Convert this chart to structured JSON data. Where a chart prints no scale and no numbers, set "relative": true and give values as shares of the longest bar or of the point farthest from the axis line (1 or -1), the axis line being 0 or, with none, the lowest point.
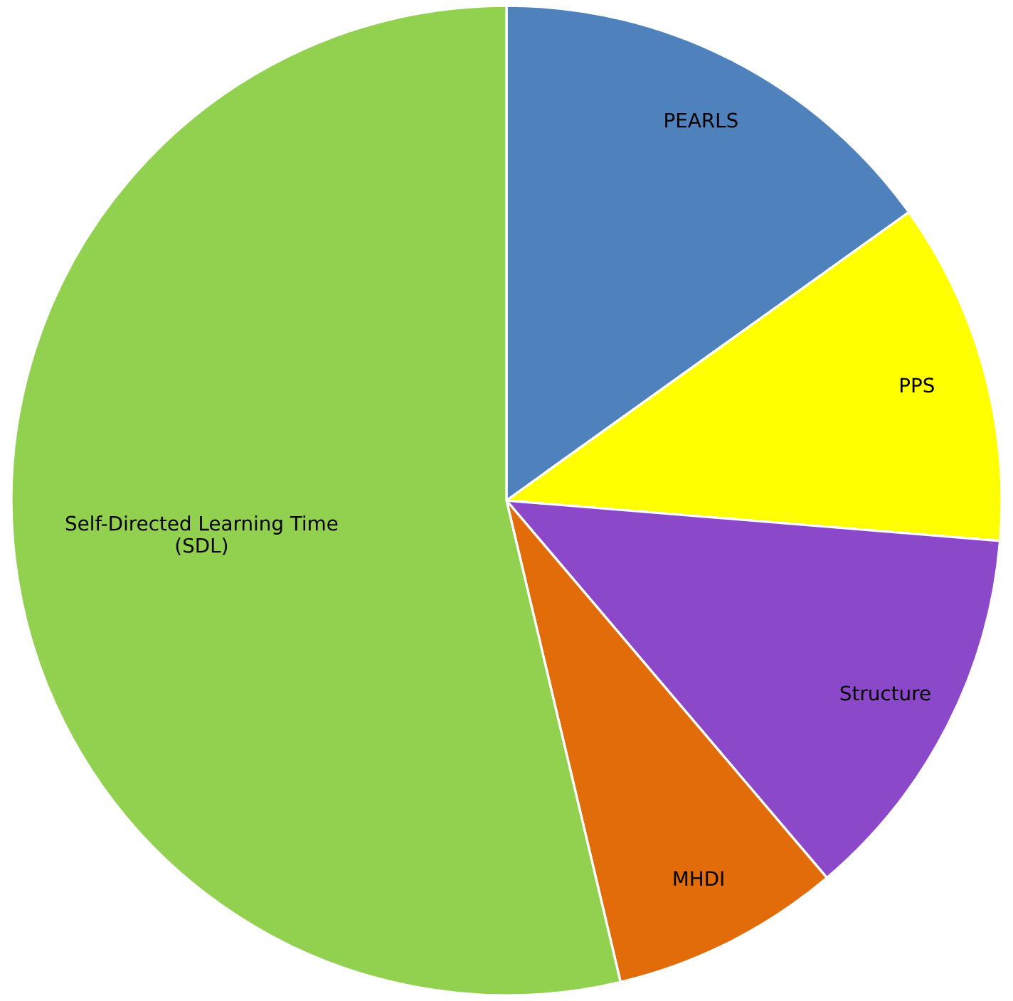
{
  "chart_data": {
    "type": "pie",
    "relative": true,
    "categories": [
      "PEARLS",
      "PPS",
      "Structure",
      "MHDI",
      "Self-Directed Learning Time\n(SDL)"
    ],
    "values": [
      15.1,
      11.2,
      12.5,
      7.5,
      53.7
    ],
    "colors": [
      "#4f81bd",
      "#ffff00",
      "#8b49c9",
      "#e36c0a",
      "#92d050"
    ]
  }
}
